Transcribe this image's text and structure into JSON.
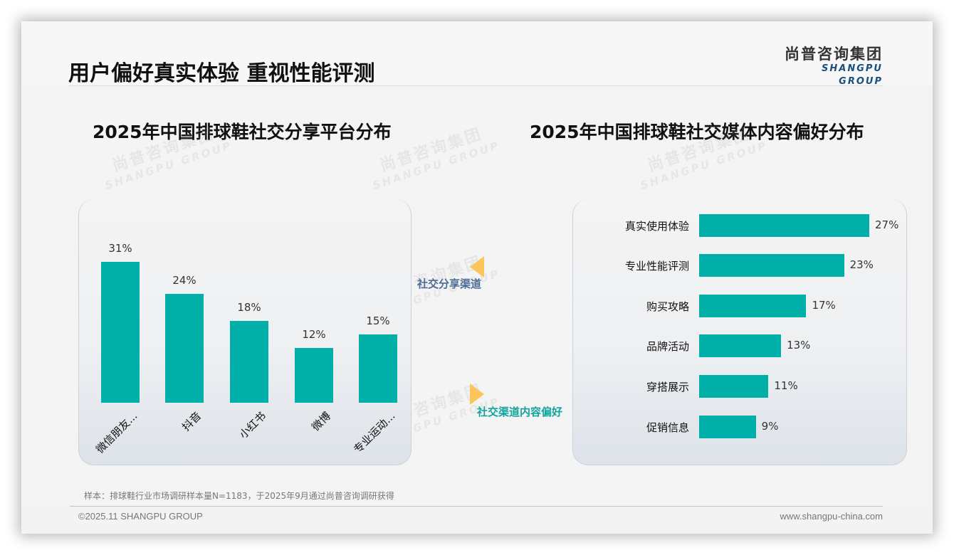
{
  "header": {
    "title": "用户偏好真实体验 重视性能评测",
    "logo_cn": "尚普咨询集团",
    "logo_en": "SHANGPU GROUP"
  },
  "watermark": {
    "cn": "尚普咨询集团",
    "en": "SHANGPU GROUP"
  },
  "connectors": {
    "top_label": "社交分享渠道",
    "top_color": "#4a6d96",
    "bottom_label": "社交渠道内容偏好",
    "bottom_color": "#10a59c",
    "arrow_color": "#fbc55a"
  },
  "colors": {
    "bar": "#00b0a8"
  },
  "chart_data": [
    {
      "type": "bar",
      "title": "2025年中国排球鞋社交分享平台分布",
      "categories": [
        "微信朋友...",
        "抖音",
        "小红书",
        "微博",
        "专业运动..."
      ],
      "values": [
        31,
        24,
        18,
        12,
        15
      ],
      "value_labels": [
        "31%",
        "24%",
        "18%",
        "12%",
        "15%"
      ],
      "xlabel": "",
      "ylabel": "",
      "unit": "%",
      "grid": false,
      "legend": null,
      "orientation": "vertical"
    },
    {
      "type": "bar",
      "title": "2025年中国排球鞋社交媒体内容偏好分布",
      "categories": [
        "真实使用体验",
        "专业性能评测",
        "购买攻略",
        "品牌活动",
        "穿搭展示",
        "促销信息"
      ],
      "values": [
        27,
        23,
        17,
        13,
        11,
        9
      ],
      "value_labels": [
        "27%",
        "23%",
        "17%",
        "13%",
        "11%",
        "9%"
      ],
      "xlabel": "",
      "ylabel": "",
      "unit": "%",
      "grid": false,
      "legend": null,
      "orientation": "horizontal"
    }
  ],
  "footer": {
    "note": "样本：排球鞋行业市场调研样本量N=1183，于2025年9月通过尚普咨询调研获得",
    "copyright": "©2025.11 SHANGPU GROUP",
    "website": "www.shangpu-china.com"
  }
}
